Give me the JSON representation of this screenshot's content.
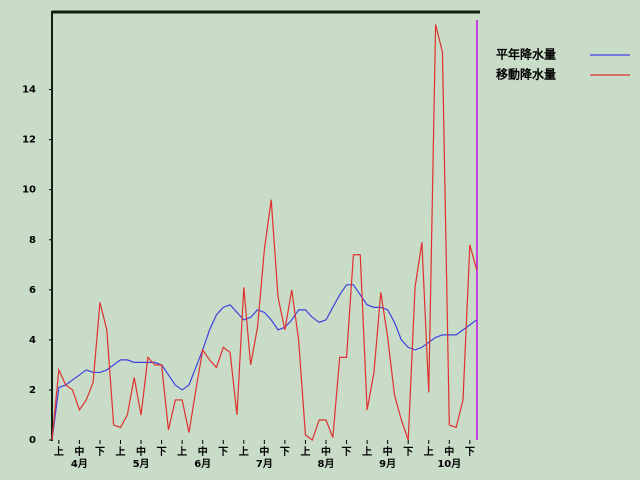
{
  "chart_data": {
    "type": "line",
    "categories": [
      null,
      "上",
      null,
      null,
      "中",
      null,
      null,
      "下",
      null,
      null,
      "上",
      null,
      null,
      "中",
      null,
      null,
      "下",
      null,
      null,
      "上",
      null,
      null,
      "中",
      null,
      null,
      "下",
      null,
      null,
      "上",
      null,
      null,
      "中",
      null,
      null,
      "下",
      null,
      null,
      "上",
      null,
      null,
      "中",
      null,
      null,
      "下",
      null,
      null,
      "上",
      null,
      null,
      "中",
      null,
      null,
      "下",
      null,
      null,
      "上",
      null,
      null,
      "中",
      null,
      null,
      "下",
      null
    ],
    "months": [
      "4月",
      "5月",
      "6月",
      "7月",
      "8月",
      "9月",
      "10月"
    ],
    "series": [
      {
        "name": "平年降水量",
        "color": "#4040e0",
        "values": [
          0,
          2.1,
          2.2,
          2.4,
          2.6,
          2.8,
          2.7,
          2.7,
          2.8,
          3.0,
          3.2,
          3.2,
          3.1,
          3.1,
          3.1,
          3.1,
          3.0,
          2.6,
          2.2,
          2.0,
          2.2,
          2.9,
          3.6,
          4.4,
          5.0,
          5.3,
          5.4,
          5.1,
          4.8,
          4.9,
          5.2,
          5.1,
          4.8,
          4.4,
          4.5,
          4.8,
          5.2,
          5.2,
          4.9,
          4.7,
          4.8,
          5.3,
          5.8,
          6.2,
          6.2,
          5.8,
          5.4,
          5.3,
          5.3,
          5.2,
          4.7,
          4.0,
          3.7,
          3.6,
          3.7,
          3.9,
          4.1,
          4.2,
          4.2,
          4.2,
          4.4,
          4.6,
          4.8
        ]
      },
      {
        "name": "移動降水量",
        "color": "#e03030",
        "values": [
          0,
          2.8,
          2.2,
          2.0,
          1.2,
          1.6,
          2.3,
          5.5,
          4.4,
          0.6,
          0.5,
          1.0,
          2.5,
          1.0,
          3.3,
          3.0,
          3.0,
          0.4,
          1.6,
          1.6,
          0.3,
          2.0,
          3.6,
          3.2,
          2.9,
          3.7,
          3.5,
          1.0,
          6.1,
          3.0,
          4.5,
          7.6,
          9.6,
          5.7,
          4.4,
          6.0,
          4.0,
          0.2,
          0,
          0.8,
          0.8,
          0.1,
          3.3,
          3.3,
          7.4,
          7.4,
          1.2,
          2.7,
          5.9,
          4.1,
          1.8,
          0.8,
          0,
          6.1,
          7.9,
          1.9,
          16.6,
          15.5,
          0.6,
          0.5,
          1.6,
          7.8,
          6.8
        ]
      }
    ],
    "ylim": [
      0,
      17.1
    ],
    "yticks": [
      0,
      2,
      4,
      6,
      8,
      10,
      12,
      14
    ],
    "grid": false
  }
}
